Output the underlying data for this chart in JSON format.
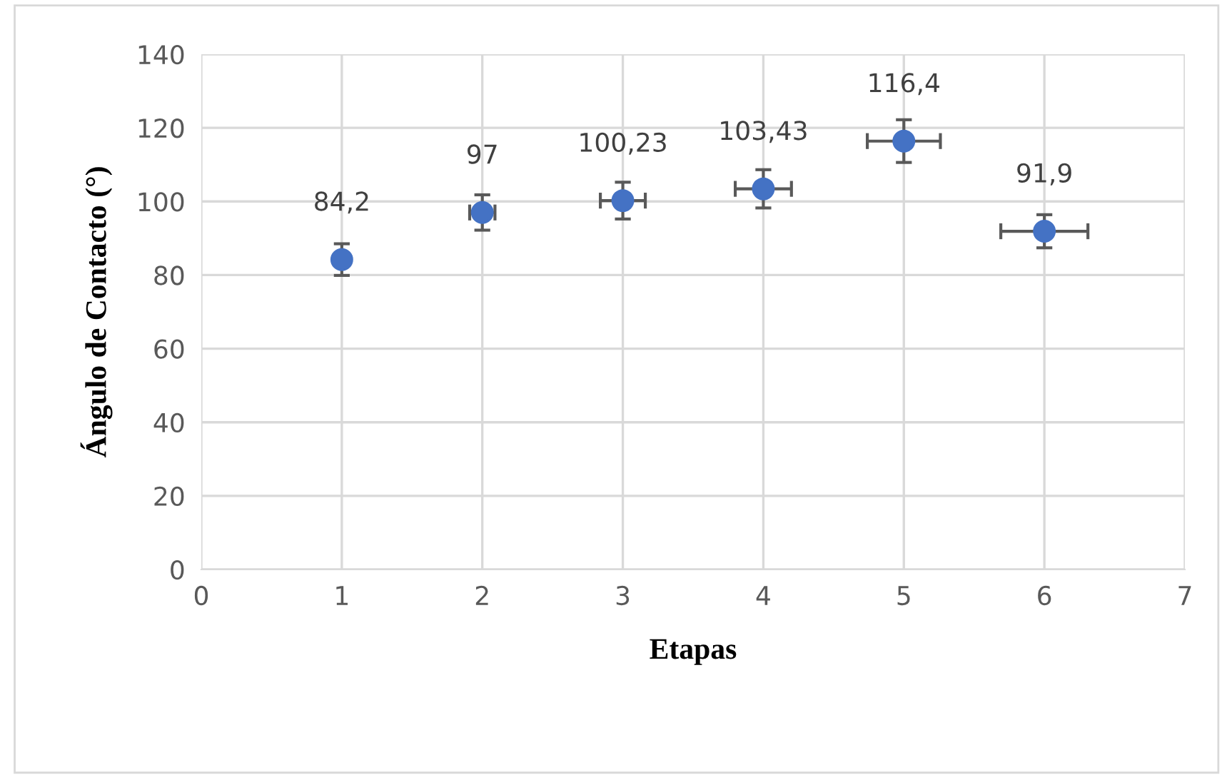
{
  "chart_data": {
    "type": "scatter",
    "xlabel": "Etapas",
    "ylabel": "Ángulo de Contacto (°)",
    "x": [
      1,
      2,
      3,
      4,
      5,
      6
    ],
    "values": [
      84.2,
      97,
      100.23,
      103.43,
      116.4,
      91.9
    ],
    "errors": [
      4.3,
      4.8,
      5.0,
      5.2,
      5.8,
      4.5
    ],
    "xerrors": [
      null,
      0.09,
      0.16,
      0.2,
      0.26,
      0.31
    ],
    "value_labels": [
      "84,2",
      "97",
      "100,23",
      "103,43",
      "116,4",
      "91,9"
    ],
    "color": "#4472c4",
    "marker": "circle",
    "xlim": [
      0,
      7
    ],
    "xticks": [
      0,
      1,
      2,
      3,
      4,
      5,
      6,
      7
    ],
    "ylim": [
      0,
      140
    ],
    "yticks": [
      0,
      20,
      40,
      60,
      80,
      100,
      120,
      140
    ],
    "grid": true,
    "legend": false
  }
}
